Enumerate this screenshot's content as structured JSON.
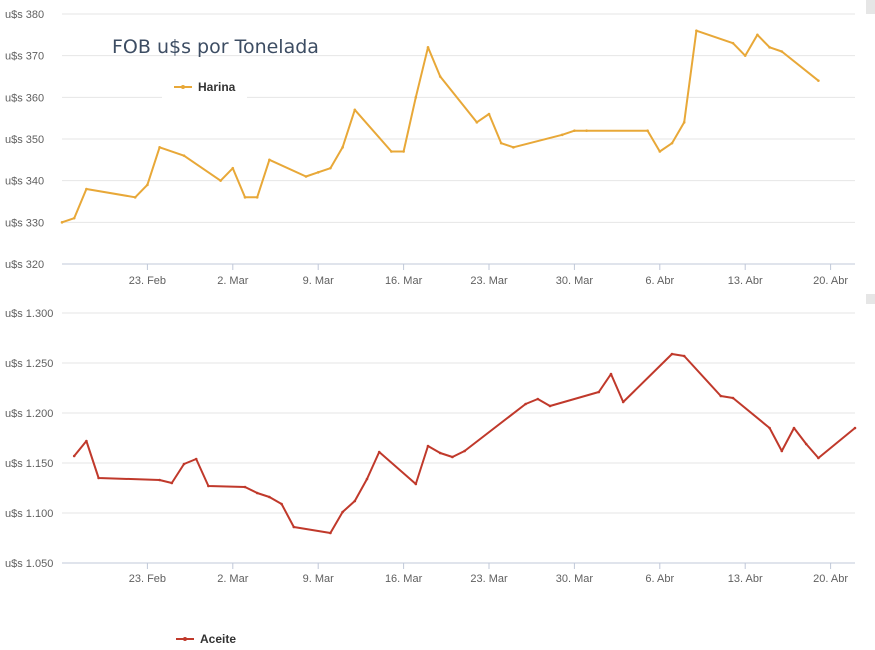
{
  "colors": {
    "harina": "#e8a838",
    "aceite": "#c0392b",
    "grid": "#e6e6e6",
    "axis_text": "#606060",
    "title": "#3d4d63"
  },
  "chart_data": [
    {
      "type": "line",
      "title": "FOB u$s por Tonelada",
      "ylim": [
        320,
        380
      ],
      "yticks": [
        "u$s 320",
        "u$s 330",
        "u$s 340",
        "u$s 350",
        "u$s 360",
        "u$s 370",
        "u$s 380"
      ],
      "ytick_values": [
        320,
        330,
        340,
        350,
        360,
        370,
        380
      ],
      "xlim": [
        "2015-02-16",
        "2015-04-22"
      ],
      "xticks": [
        "23. Feb",
        "2. Mar",
        "9. Mar",
        "16. Mar",
        "23. Mar",
        "30. Mar",
        "6. Abr",
        "13. Abr",
        "20. Abr"
      ],
      "xtick_dates": [
        "2015-02-23",
        "2015-03-02",
        "2015-03-09",
        "2015-03-16",
        "2015-03-23",
        "2015-03-30",
        "2015-04-06",
        "2015-04-13",
        "2015-04-20"
      ],
      "legend": "top-left",
      "grid": true,
      "series": [
        {
          "name": "Harina",
          "x": [
            "2015-02-16",
            "2015-02-17",
            "2015-02-18",
            "2015-02-22",
            "2015-02-23",
            "2015-02-24",
            "2015-02-26",
            "2015-03-01",
            "2015-03-02",
            "2015-03-03",
            "2015-03-04",
            "2015-03-05",
            "2015-03-08",
            "2015-03-09",
            "2015-03-10",
            "2015-03-11",
            "2015-03-12",
            "2015-03-15",
            "2015-03-16",
            "2015-03-17",
            "2015-03-18",
            "2015-03-19",
            "2015-03-22",
            "2015-03-23",
            "2015-03-24",
            "2015-03-25",
            "2015-03-29",
            "2015-03-30",
            "2015-03-31",
            "2015-04-05",
            "2015-04-06",
            "2015-04-07",
            "2015-04-08",
            "2015-04-09",
            "2015-04-12",
            "2015-04-13",
            "2015-04-14",
            "2015-04-15",
            "2015-04-16",
            "2015-04-19"
          ],
          "values": [
            330,
            331,
            338,
            336,
            339,
            348,
            346,
            340,
            343,
            336,
            336,
            345,
            341,
            342,
            343,
            348,
            357,
            347,
            347,
            360,
            372,
            365,
            354,
            356,
            349,
            348,
            351,
            352,
            352,
            352,
            347,
            349,
            354,
            376,
            373,
            370,
            375,
            372,
            371,
            364
          ]
        }
      ]
    },
    {
      "type": "line",
      "ylim": [
        1050,
        1300
      ],
      "yticks": [
        "u$s 1.050",
        "u$s 1.100",
        "u$s 1.150",
        "u$s 1.200",
        "u$s 1.250",
        "u$s 1.300"
      ],
      "ytick_values": [
        1050,
        1100,
        1150,
        1200,
        1250,
        1300
      ],
      "xlim": [
        "2015-02-16",
        "2015-04-22"
      ],
      "xticks": [
        "23. Feb",
        "2. Mar",
        "9. Mar",
        "16. Mar",
        "23. Mar",
        "30. Mar",
        "6. Abr",
        "13. Abr",
        "20. Abr"
      ],
      "xtick_dates": [
        "2015-02-23",
        "2015-03-02",
        "2015-03-09",
        "2015-03-16",
        "2015-03-23",
        "2015-03-30",
        "2015-04-06",
        "2015-04-13",
        "2015-04-20"
      ],
      "legend": "top-left",
      "grid": true,
      "series": [
        {
          "name": "Aceite",
          "x": [
            "2015-02-17",
            "2015-02-18",
            "2015-02-19",
            "2015-02-24",
            "2015-02-25",
            "2015-02-26",
            "2015-02-27",
            "2015-02-28",
            "2015-03-03",
            "2015-03-04",
            "2015-03-05",
            "2015-03-06",
            "2015-03-07",
            "2015-03-10",
            "2015-03-11",
            "2015-03-12",
            "2015-03-13",
            "2015-03-14",
            "2015-03-17",
            "2015-03-18",
            "2015-03-19",
            "2015-03-20",
            "2015-03-21",
            "2015-03-26",
            "2015-03-27",
            "2015-03-28",
            "2015-04-01",
            "2015-04-02",
            "2015-04-03",
            "2015-04-07",
            "2015-04-08",
            "2015-04-11",
            "2015-04-12",
            "2015-04-15",
            "2015-04-16",
            "2015-04-17",
            "2015-04-18",
            "2015-04-19",
            "2015-04-22"
          ],
          "values": [
            1157,
            1172,
            1135,
            1133,
            1130,
            1149,
            1154,
            1127,
            1126,
            1120,
            1116,
            1109,
            1086,
            1080,
            1101,
            1112,
            1134,
            1161,
            1129,
            1167,
            1160,
            1156,
            1162,
            1209,
            1214,
            1207,
            1221,
            1239,
            1211,
            1259,
            1257,
            1217,
            1215,
            1185,
            1162,
            1185,
            1169,
            1155,
            1185
          ]
        }
      ]
    }
  ]
}
